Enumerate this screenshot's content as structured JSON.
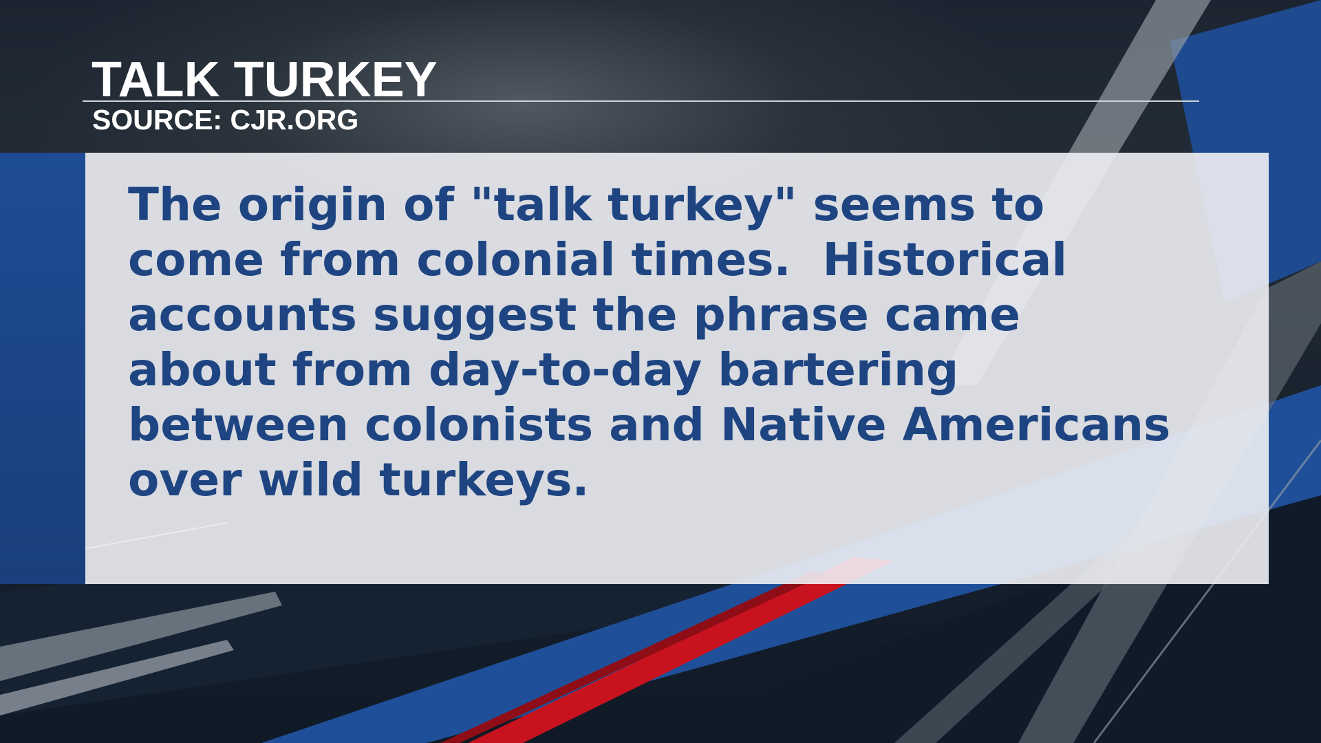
{
  "graphic": {
    "title": "TALK TURKEY",
    "source": "SOURCE: CJR.ORG",
    "body_lines": [
      "The origin of \"talk turkey\" seems to",
      "come from colonial times.  Historical",
      "accounts suggest the phrase came",
      "about from day-to-day bartering",
      "between colonists and Native Americans",
      "over wild turkeys."
    ]
  },
  "colors": {
    "title_text": "#ffffff",
    "body_text": "#1e4582",
    "panel": "#eef0f4",
    "accent_blue": "#1e4c94",
    "accent_red": "#c8121e"
  }
}
